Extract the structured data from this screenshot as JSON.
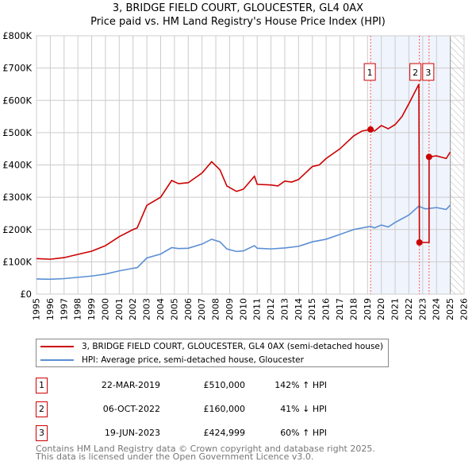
{
  "chart_data": {
    "type": "line",
    "title": "3, BRIDGE FIELD COURT, GLOUCESTER, GL4 0AX",
    "subtitle": "Price paid vs. HM Land Registry's House Price Index (HPI)",
    "xlim": [
      1995,
      2026
    ],
    "ylim": [
      0,
      800000
    ],
    "x_ticks": [
      "1995",
      "1996",
      "1997",
      "1998",
      "1999",
      "2000",
      "2001",
      "2002",
      "2003",
      "2004",
      "2005",
      "2006",
      "2007",
      "2008",
      "2009",
      "2010",
      "2011",
      "2012",
      "2013",
      "2014",
      "2015",
      "2016",
      "2017",
      "2018",
      "2019",
      "2020",
      "2021",
      "2022",
      "2023",
      "2024",
      "2025",
      "2026"
    ],
    "y_ticks": [
      {
        "v": 0,
        "l": "£0"
      },
      {
        "v": 100000,
        "l": "£100K"
      },
      {
        "v": 200000,
        "l": "£200K"
      },
      {
        "v": 300000,
        "l": "£300K"
      },
      {
        "v": 400000,
        "l": "£400K"
      },
      {
        "v": 500000,
        "l": "£500K"
      },
      {
        "v": 600000,
        "l": "£600K"
      },
      {
        "v": 700000,
        "l": "£700K"
      },
      {
        "v": 800000,
        "l": "£800K"
      }
    ],
    "grid": true,
    "shaded_range": [
      2019.22,
      2025.0
    ],
    "forecast_hatch_from": 2025.0,
    "series": [
      {
        "name": "3, BRIDGE FIELD COURT, GLOUCESTER, GL4 0AX (semi-detached house)",
        "color": "#cc0000",
        "x": [
          1995,
          1996,
          1997,
          1998,
          1999,
          2000,
          2001,
          2002,
          2002.3,
          2003,
          2004,
          2004.8,
          2005.3,
          2006,
          2007,
          2007.7,
          2008.3,
          2008.8,
          2009.5,
          2010,
          2010.8,
          2011,
          2012,
          2012.5,
          2013,
          2013.5,
          2014,
          2015,
          2015.5,
          2016,
          2017,
          2018,
          2018.6,
          2019.22,
          2019.5,
          2020,
          2020.5,
          2021,
          2021.5,
          2022,
          2022.72,
          2022.76,
          2023.46,
          2023.46,
          2024,
          2024.7,
          2025
        ],
        "y": [
          110000,
          108000,
          113000,
          123000,
          133000,
          150000,
          178000,
          200000,
          205000,
          275000,
          300000,
          352000,
          342000,
          345000,
          375000,
          410000,
          385000,
          335000,
          318000,
          325000,
          365000,
          340000,
          338000,
          335000,
          350000,
          347000,
          355000,
          395000,
          400000,
          420000,
          450000,
          490000,
          505000,
          510000,
          505000,
          522000,
          512000,
          525000,
          550000,
          590000,
          650000,
          160000,
          160000,
          424999,
          428000,
          420000,
          440000
        ]
      },
      {
        "name": "HPI: Average price, semi-detached house, Gloucester",
        "color": "#5b8fd4",
        "x": [
          1995,
          1996,
          1997,
          1998,
          1999,
          2000,
          2001,
          2002,
          2002.3,
          2003,
          2004,
          2004.8,
          2005.3,
          2006,
          2007,
          2007.7,
          2008.3,
          2008.8,
          2009.5,
          2010,
          2010.8,
          2011,
          2012,
          2013,
          2014,
          2015,
          2016,
          2017,
          2018,
          2019.22,
          2019.5,
          2020,
          2020.5,
          2021,
          2022,
          2022.7,
          2023.2,
          2024,
          2024.7,
          2025
        ],
        "y": [
          47000,
          46000,
          48000,
          52000,
          56000,
          62000,
          72000,
          80000,
          82000,
          112000,
          124000,
          144000,
          141000,
          142000,
          155000,
          170000,
          162000,
          140000,
          132000,
          134000,
          150000,
          142000,
          140000,
          143000,
          148000,
          162000,
          170000,
          185000,
          200000,
          210000,
          205000,
          214000,
          208000,
          222000,
          245000,
          272000,
          264000,
          268000,
          262000,
          276000
        ]
      }
    ],
    "sales": [
      {
        "id": "1",
        "x": 2019.22,
        "y": 510000,
        "date": "22-MAR-2019",
        "price": "£510,000",
        "hpi": "142% ↑ HPI"
      },
      {
        "id": "2",
        "x": 2022.76,
        "y": 160000,
        "date": "06-OCT-2022",
        "price": "£160,000",
        "hpi": "41% ↓ HPI"
      },
      {
        "id": "3",
        "x": 2023.46,
        "y": 424999,
        "date": "19-JUN-2023",
        "price": "£424,999",
        "hpi": "60% ↑ HPI"
      }
    ],
    "legend_placement": "below"
  },
  "footer": {
    "line1": "Contains HM Land Registry data © Crown copyright and database right 2025.",
    "line2": "This data is licensed under the Open Government Licence v3.0."
  }
}
